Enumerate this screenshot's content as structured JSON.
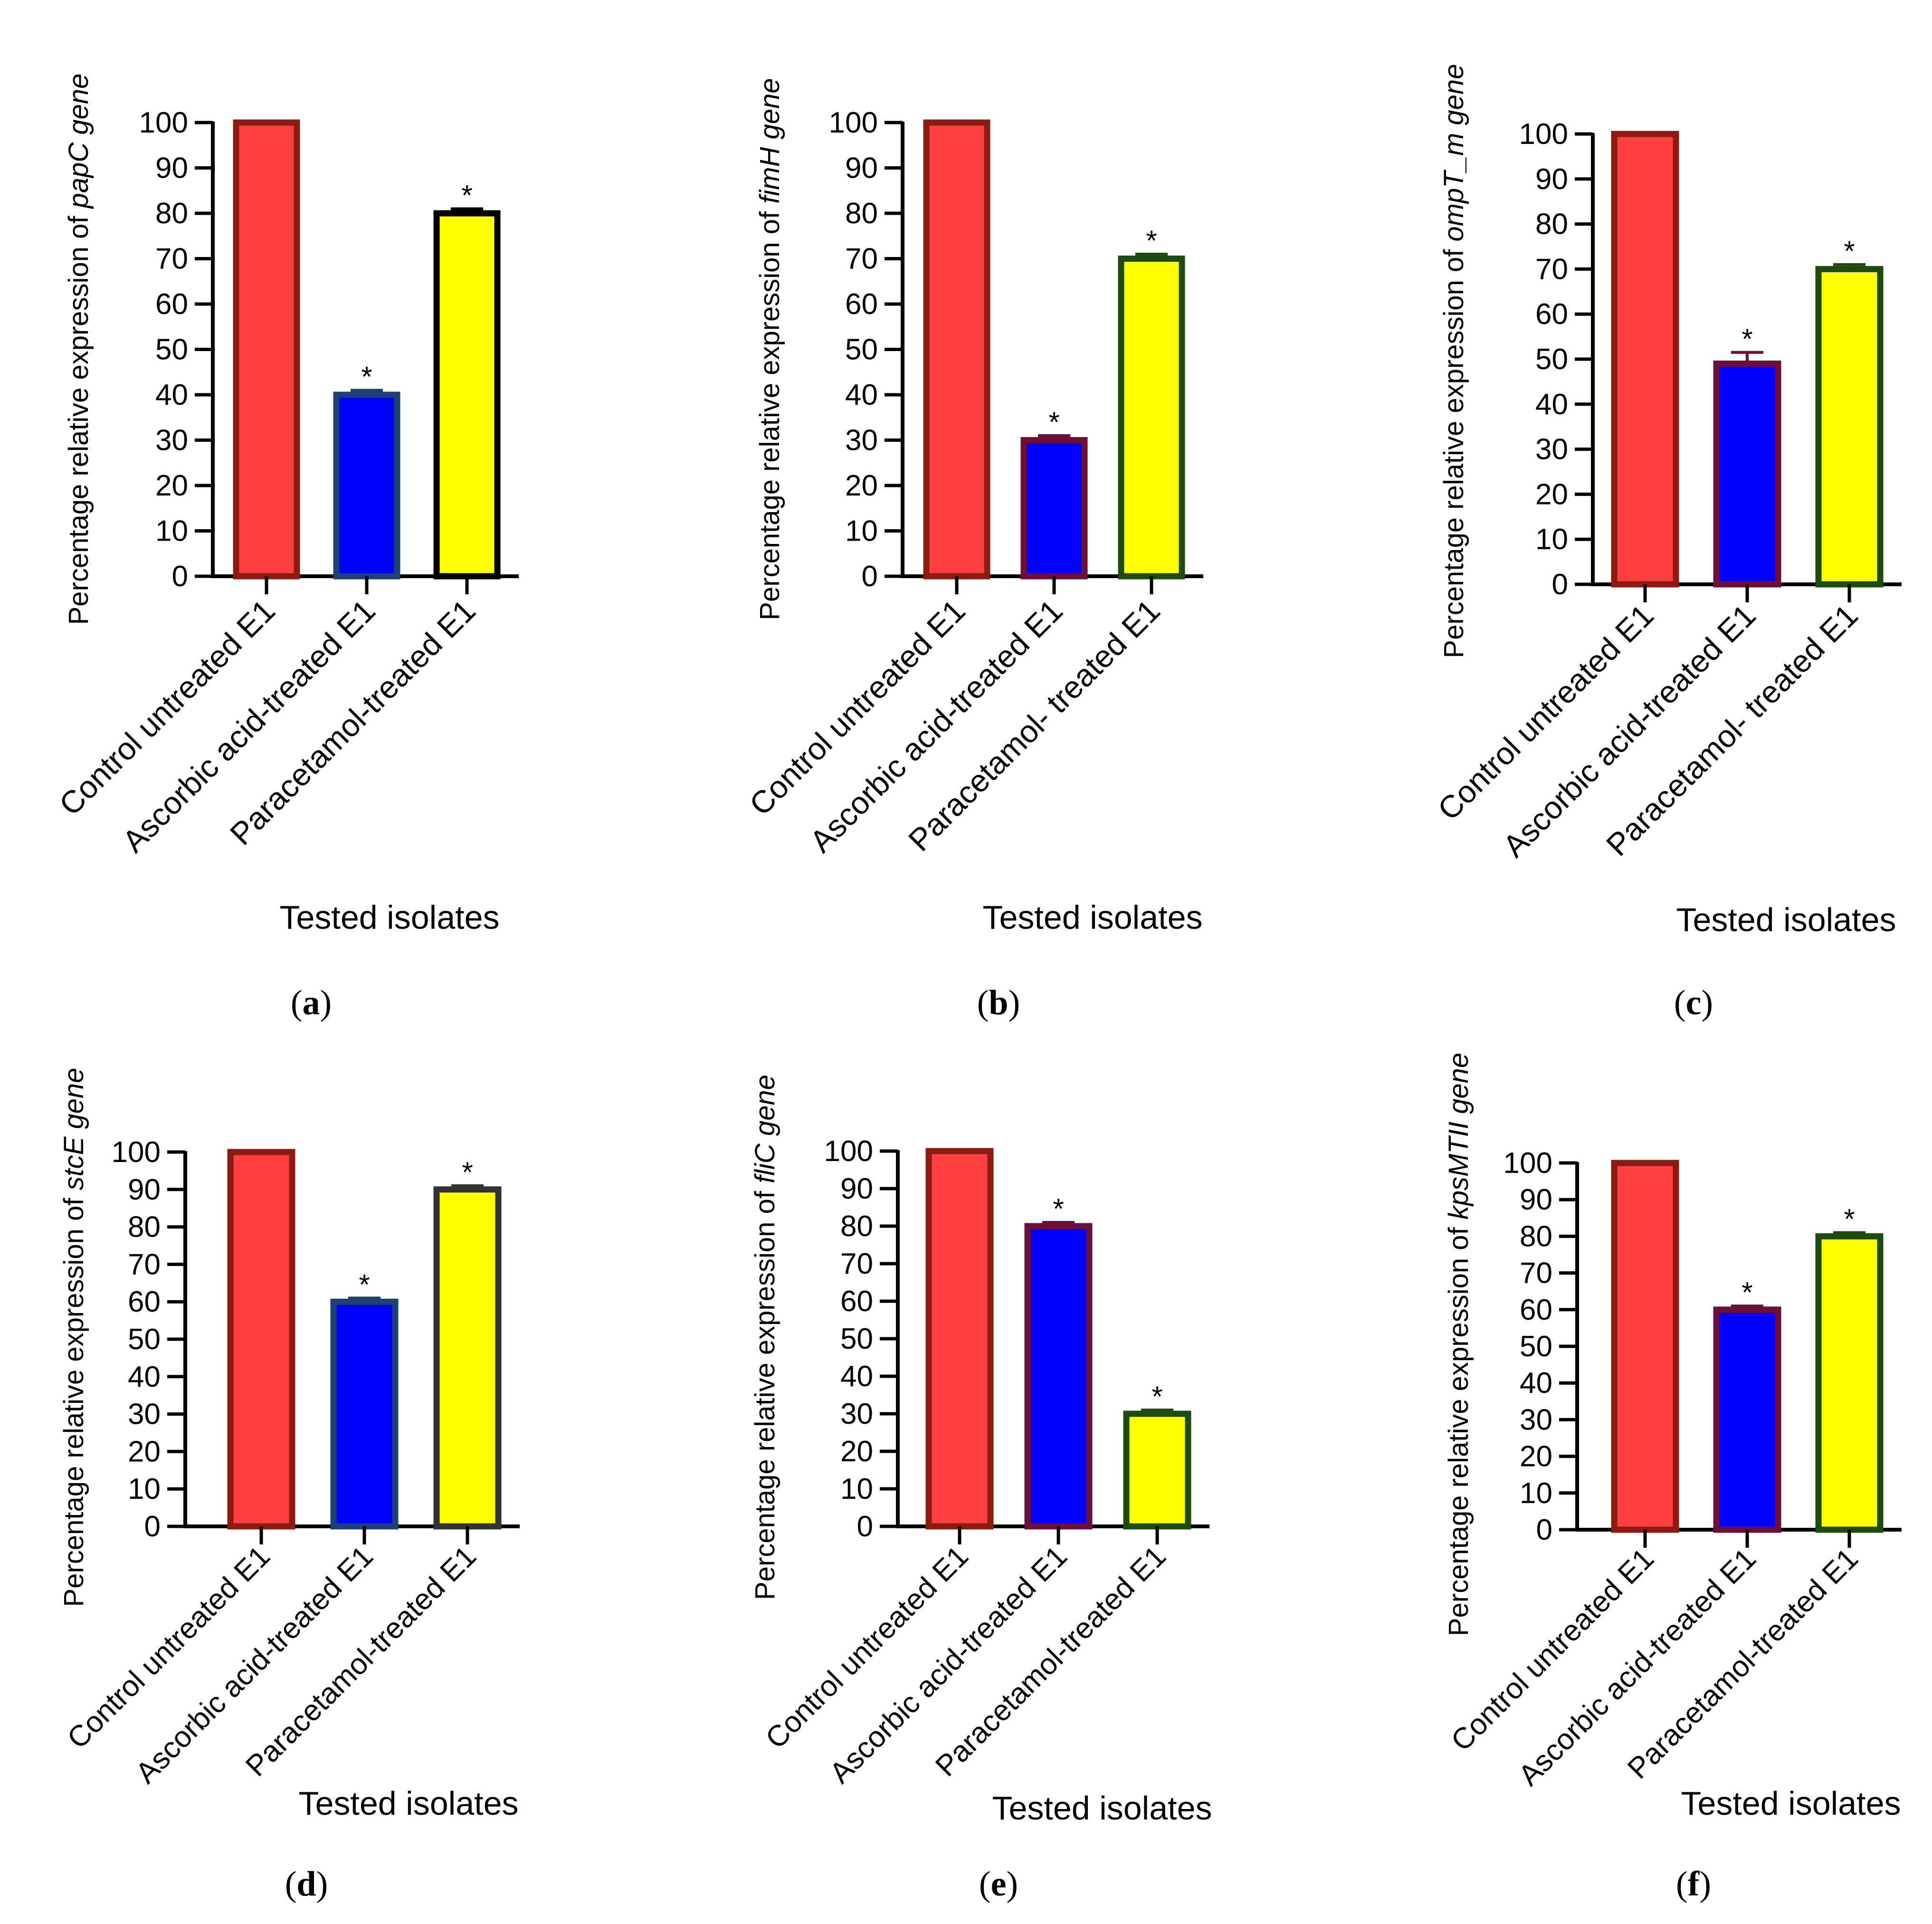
{
  "figure": {
    "background": "#ffffff"
  },
  "chart_data": [
    {
      "panel": "a",
      "type": "bar",
      "categories": [
        "Control untreated E1",
        "Ascorbic acid-treated E1",
        "Paracetamol-treated E1"
      ],
      "values": [
        100,
        40,
        80
      ],
      "errors": [
        0,
        1,
        1
      ],
      "significance": [
        "",
        "*",
        "*"
      ],
      "fills": [
        "#ff4040",
        "#0000ff",
        "#ffff00"
      ],
      "strokes": [
        "#8b1a10",
        "#1f3f73",
        "#000000"
      ],
      "ylabel_prefix": "Percentage relative expression of ",
      "ylabel_gene": "papC",
      "ylabel_suffix": " gene",
      "xlabel": "Tested isolates",
      "yticks": [
        0,
        10,
        20,
        30,
        40,
        50,
        60,
        70,
        80,
        90,
        100
      ],
      "ylim": [
        0,
        100
      ],
      "grid": false
    },
    {
      "panel": "b",
      "type": "bar",
      "categories": [
        "Control untreated E1",
        "Ascorbic acid-treated E1",
        "Paracetamol- treated E1"
      ],
      "values": [
        100,
        30,
        70
      ],
      "errors": [
        0,
        1,
        1
      ],
      "significance": [
        "",
        "*",
        "*"
      ],
      "fills": [
        "#ff4040",
        "#0000ff",
        "#ffff00"
      ],
      "strokes": [
        "#8b1a10",
        "#6b0f3a",
        "#1f4a10"
      ],
      "ylabel_prefix": "Percentage relative expression of ",
      "ylabel_gene": "fimH",
      "ylabel_suffix": " gene",
      "xlabel": "Tested isolates",
      "yticks": [
        0,
        10,
        20,
        30,
        40,
        50,
        60,
        70,
        80,
        90,
        100
      ],
      "ylim": [
        0,
        100
      ],
      "grid": false
    },
    {
      "panel": "c",
      "type": "bar",
      "categories": [
        "Control untreated E1",
        "Ascorbic acid-treated E1",
        "Paracetamol- treated E1"
      ],
      "values": [
        100,
        49,
        70
      ],
      "errors": [
        0,
        2.5,
        1
      ],
      "significance": [
        "",
        "*",
        "*"
      ],
      "fills": [
        "#ff4040",
        "#0000ff",
        "#ffff00"
      ],
      "strokes": [
        "#8b1a10",
        "#6b0f3a",
        "#1f4a10"
      ],
      "ylabel_prefix": "Percentage relative expression of ",
      "ylabel_gene": "ompT_m",
      "ylabel_suffix": " gene",
      "xlabel": "Tested isolates",
      "yticks": [
        0,
        10,
        20,
        30,
        40,
        50,
        60,
        70,
        80,
        90,
        100
      ],
      "ylim": [
        0,
        100
      ],
      "grid": false
    },
    {
      "panel": "d",
      "type": "bar",
      "categories": [
        "Control untreated E1",
        "Ascorbic acid-treated E1",
        "Paracetamol-treated E1"
      ],
      "values": [
        100,
        60,
        90
      ],
      "errors": [
        0,
        1,
        1
      ],
      "significance": [
        "",
        "*",
        "*"
      ],
      "fills": [
        "#ff4040",
        "#0000ff",
        "#ffff00"
      ],
      "strokes": [
        "#8b1a10",
        "#1f3f73",
        "#333333"
      ],
      "ylabel_prefix": "Percentage relative expression of ",
      "ylabel_gene": "stcE",
      "ylabel_suffix": " gene",
      "xlabel": "Tested isolates",
      "yticks": [
        0,
        10,
        20,
        30,
        40,
        50,
        60,
        70,
        80,
        90,
        100
      ],
      "ylim": [
        0,
        100
      ],
      "grid": false
    },
    {
      "panel": "e",
      "type": "bar",
      "categories": [
        "Control untreated E1",
        "Ascorbic acid-treated E1",
        "Paracetamol-treated E1"
      ],
      "values": [
        100,
        80,
        30
      ],
      "errors": [
        0,
        1,
        1
      ],
      "significance": [
        "",
        "*",
        "*"
      ],
      "fills": [
        "#ff4040",
        "#0000ff",
        "#ffff00"
      ],
      "strokes": [
        "#8b1a10",
        "#6b0f3a",
        "#1f4a10"
      ],
      "ylabel_prefix": "Percentage relative expression of ",
      "ylabel_gene": "fliC",
      "ylabel_suffix": " gene",
      "xlabel": "Tested isolates",
      "yticks": [
        0,
        10,
        20,
        30,
        40,
        50,
        60,
        70,
        80,
        90,
        100
      ],
      "ylim": [
        0,
        100
      ],
      "grid": false
    },
    {
      "panel": "f",
      "type": "bar",
      "categories": [
        "Control untreated E1",
        "Ascorbic acid-treated E1",
        "Paracetamol-treated E1"
      ],
      "values": [
        100,
        60,
        80
      ],
      "errors": [
        0,
        1,
        1
      ],
      "significance": [
        "",
        "*",
        "*"
      ],
      "fills": [
        "#ff4040",
        "#0000ff",
        "#ffff00"
      ],
      "strokes": [
        "#8b1a10",
        "#6b0f3a",
        "#1f4a10"
      ],
      "ylabel_prefix": "Percentage relative expression of ",
      "ylabel_gene": "kpsMTII",
      "ylabel_suffix": " gene",
      "xlabel": "Tested isolates",
      "yticks": [
        0,
        10,
        20,
        30,
        40,
        50,
        60,
        70,
        80,
        90,
        100
      ],
      "ylim": [
        0,
        100
      ],
      "grid": false
    }
  ]
}
